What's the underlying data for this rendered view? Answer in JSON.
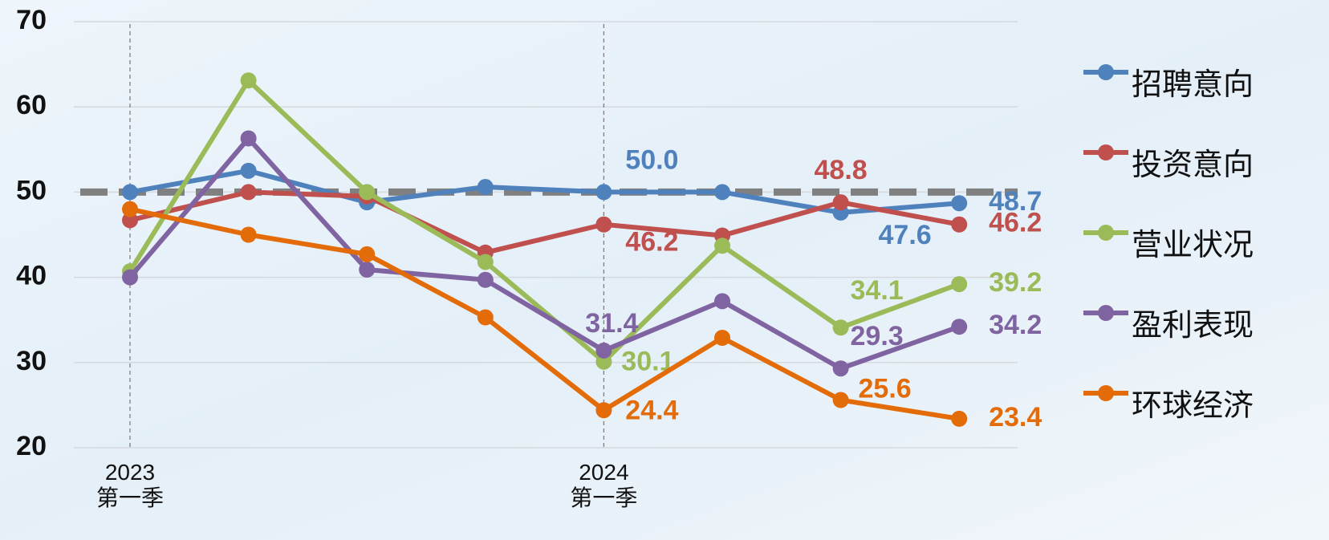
{
  "chart_data": {
    "type": "line",
    "categories": [
      "2023\n第一季",
      null,
      null,
      null,
      "2024\n第一季",
      null,
      null,
      null
    ],
    "ylim": [
      20,
      70
    ],
    "yticks": [
      20,
      30,
      40,
      50,
      60,
      70
    ],
    "grid": true,
    "reference_line": 50,
    "legend": "right",
    "series": [
      {
        "name": "招聘意向",
        "color": "#4f81bd",
        "values": [
          50.0,
          52.5,
          48.8,
          50.6,
          50.0,
          50.0,
          47.6,
          48.7
        ],
        "value_labels": [
          null,
          null,
          null,
          null,
          "50.0",
          null,
          "47.6",
          "48.7"
        ]
      },
      {
        "name": "投资意向",
        "color": "#c0504d",
        "values": [
          46.7,
          50.0,
          49.5,
          42.9,
          46.2,
          44.9,
          48.8,
          46.2
        ],
        "value_labels": [
          null,
          null,
          null,
          null,
          "46.2",
          null,
          "48.8",
          "46.2"
        ]
      },
      {
        "name": "营业状况",
        "color": "#9bbb59",
        "values": [
          40.7,
          63.1,
          50.0,
          41.8,
          30.1,
          43.7,
          34.1,
          39.2
        ],
        "value_labels": [
          null,
          null,
          null,
          null,
          "30.1",
          null,
          "34.1",
          "39.2"
        ]
      },
      {
        "name": "盈利表现",
        "color": "#8064a2",
        "values": [
          40.0,
          56.3,
          40.9,
          39.7,
          31.4,
          37.2,
          29.3,
          34.2
        ],
        "value_labels": [
          null,
          null,
          null,
          null,
          "31.4",
          null,
          "29.3",
          "34.2"
        ]
      },
      {
        "name": "环球经济",
        "color": "#e36c09",
        "values": [
          48.0,
          45.0,
          42.7,
          35.3,
          24.4,
          32.9,
          25.6,
          23.4
        ],
        "value_labels": [
          null,
          null,
          null,
          null,
          "24.4",
          null,
          "25.6",
          "23.4"
        ]
      }
    ]
  }
}
